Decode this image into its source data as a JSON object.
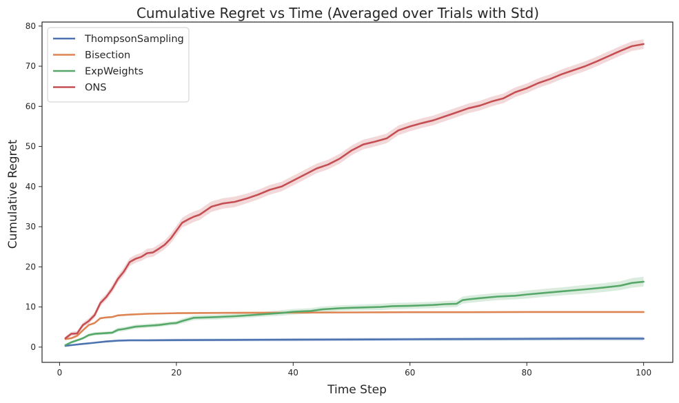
{
  "chart_data": {
    "type": "line",
    "title": "Cumulative Regret vs Time (Averaged over Trials with Std)",
    "xlabel": "Time Step",
    "ylabel": "Cumulative Regret",
    "xlim": [
      -3,
      105
    ],
    "ylim": [
      -3.8,
      81
    ],
    "xticks": [
      0,
      20,
      40,
      60,
      80,
      100
    ],
    "yticks": [
      0,
      10,
      20,
      30,
      40,
      50,
      60,
      70,
      80
    ],
    "grid": false,
    "legend_position": "top-left",
    "shaded_band": "standard deviation",
    "series": [
      {
        "name": "ThompsonSampling",
        "color": "#4c72b0",
        "x": [
          1,
          2,
          4,
          6,
          8,
          10,
          12,
          15,
          20,
          30,
          40,
          50,
          60,
          70,
          80,
          90,
          100
        ],
        "y": [
          0.3,
          0.5,
          0.8,
          1.1,
          1.4,
          1.6,
          1.7,
          1.7,
          1.75,
          1.8,
          1.85,
          1.9,
          1.95,
          2.0,
          2.05,
          2.1,
          2.1
        ],
        "std": [
          0.1,
          0.1,
          0.15,
          0.2,
          0.25,
          0.3,
          0.3,
          0.3,
          0.35,
          0.35,
          0.4,
          0.4,
          0.4,
          0.45,
          0.45,
          0.5,
          0.5
        ]
      },
      {
        "name": "Bisection",
        "color": "#dd8452",
        "x": [
          1,
          2,
          3,
          4,
          5,
          6,
          7,
          8,
          9,
          10,
          12,
          15,
          20,
          25,
          30,
          40,
          50,
          60,
          70,
          80,
          90,
          100
        ],
        "y": [
          2.0,
          2.2,
          2.8,
          4.2,
          5.5,
          6.0,
          7.2,
          7.4,
          7.5,
          7.9,
          8.1,
          8.3,
          8.45,
          8.5,
          8.55,
          8.6,
          8.65,
          8.7,
          8.7,
          8.75,
          8.75,
          8.75
        ],
        "std": [
          0.1,
          0.15,
          0.15,
          0.2,
          0.2,
          0.2,
          0.2,
          0.2,
          0.2,
          0.15,
          0.15,
          0.15,
          0.1,
          0.1,
          0.1,
          0.1,
          0.1,
          0.1,
          0.1,
          0.1,
          0.1,
          0.1
        ]
      },
      {
        "name": "ExpWeights",
        "color": "#55a868",
        "x": [
          1,
          2,
          3,
          4,
          5,
          6,
          7,
          9,
          10,
          11,
          13,
          15,
          17,
          19,
          20,
          21,
          23,
          25,
          27,
          30,
          33,
          35,
          38,
          40,
          43,
          45,
          48,
          50,
          55,
          57,
          60,
          64,
          66,
          68,
          69,
          70,
          72,
          75,
          78,
          80,
          83,
          86,
          90,
          93,
          96,
          98,
          100
        ],
        "y": [
          0.5,
          1.2,
          1.7,
          2.2,
          3.0,
          3.3,
          3.4,
          3.6,
          4.3,
          4.5,
          5.1,
          5.3,
          5.5,
          5.9,
          6.0,
          6.5,
          7.3,
          7.4,
          7.5,
          7.7,
          8.0,
          8.2,
          8.5,
          8.8,
          9.0,
          9.4,
          9.7,
          9.8,
          10.0,
          10.2,
          10.3,
          10.5,
          10.7,
          10.8,
          11.7,
          11.9,
          12.2,
          12.6,
          12.8,
          13.1,
          13.5,
          13.9,
          14.4,
          14.8,
          15.3,
          16.0,
          16.3
        ],
        "std": [
          0.2,
          0.3,
          0.3,
          0.3,
          0.4,
          0.4,
          0.4,
          0.4,
          0.5,
          0.5,
          0.5,
          0.5,
          0.5,
          0.5,
          0.5,
          0.6,
          0.6,
          0.6,
          0.6,
          0.6,
          0.6,
          0.6,
          0.7,
          0.7,
          0.7,
          0.7,
          0.7,
          0.7,
          0.8,
          0.8,
          0.8,
          0.8,
          0.8,
          0.8,
          0.9,
          0.9,
          0.9,
          0.9,
          0.9,
          1.0,
          1.0,
          1.0,
          1.1,
          1.1,
          1.1,
          1.2,
          1.2
        ]
      },
      {
        "name": "ONS",
        "color": "#c44e52",
        "x": [
          1,
          2,
          3,
          4,
          5,
          6,
          7,
          8,
          9,
          10,
          11,
          12,
          13,
          14,
          15,
          16,
          17,
          18,
          19,
          20,
          21,
          22,
          23,
          24,
          25,
          26,
          28,
          30,
          32,
          34,
          36,
          38,
          40,
          42,
          44,
          46,
          48,
          50,
          52,
          54,
          56,
          58,
          60,
          62,
          64,
          66,
          68,
          70,
          72,
          74,
          76,
          78,
          80,
          82,
          84,
          86,
          88,
          90,
          92,
          94,
          96,
          98,
          100
        ],
        "y": [
          2.2,
          3.3,
          3.4,
          5.5,
          6.5,
          8.0,
          11.0,
          12.5,
          14.5,
          17.0,
          18.8,
          21.2,
          22.0,
          22.5,
          23.4,
          23.6,
          24.5,
          25.5,
          27.0,
          29.0,
          31.0,
          31.8,
          32.5,
          33.0,
          34.0,
          35.0,
          35.8,
          36.2,
          37.0,
          38.0,
          39.2,
          40.0,
          41.5,
          43.0,
          44.5,
          45.5,
          47.0,
          49.0,
          50.5,
          51.2,
          52.0,
          54.0,
          55.0,
          55.8,
          56.5,
          57.5,
          58.5,
          59.5,
          60.2,
          61.2,
          62.0,
          63.5,
          64.5,
          65.8,
          66.8,
          68.0,
          69.0,
          70.0,
          71.2,
          72.5,
          73.8,
          75.0,
          75.5
        ],
        "std": [
          0.5,
          0.5,
          0.6,
          0.6,
          0.7,
          0.7,
          0.8,
          0.8,
          0.9,
          0.9,
          1.0,
          1.0,
          1.0,
          1.0,
          1.1,
          1.1,
          1.1,
          1.1,
          1.2,
          1.2,
          1.2,
          1.3,
          1.3,
          1.3,
          1.3,
          1.3,
          1.3,
          1.3,
          1.2,
          1.2,
          1.2,
          1.2,
          1.2,
          1.2,
          1.2,
          1.2,
          1.2,
          1.2,
          1.2,
          1.2,
          1.2,
          1.2,
          1.2,
          1.2,
          1.2,
          1.2,
          1.2,
          1.2,
          1.2,
          1.2,
          1.2,
          1.2,
          1.2,
          1.2,
          1.2,
          1.2,
          1.2,
          1.2,
          1.2,
          1.2,
          1.2,
          1.2,
          1.2
        ]
      }
    ]
  }
}
